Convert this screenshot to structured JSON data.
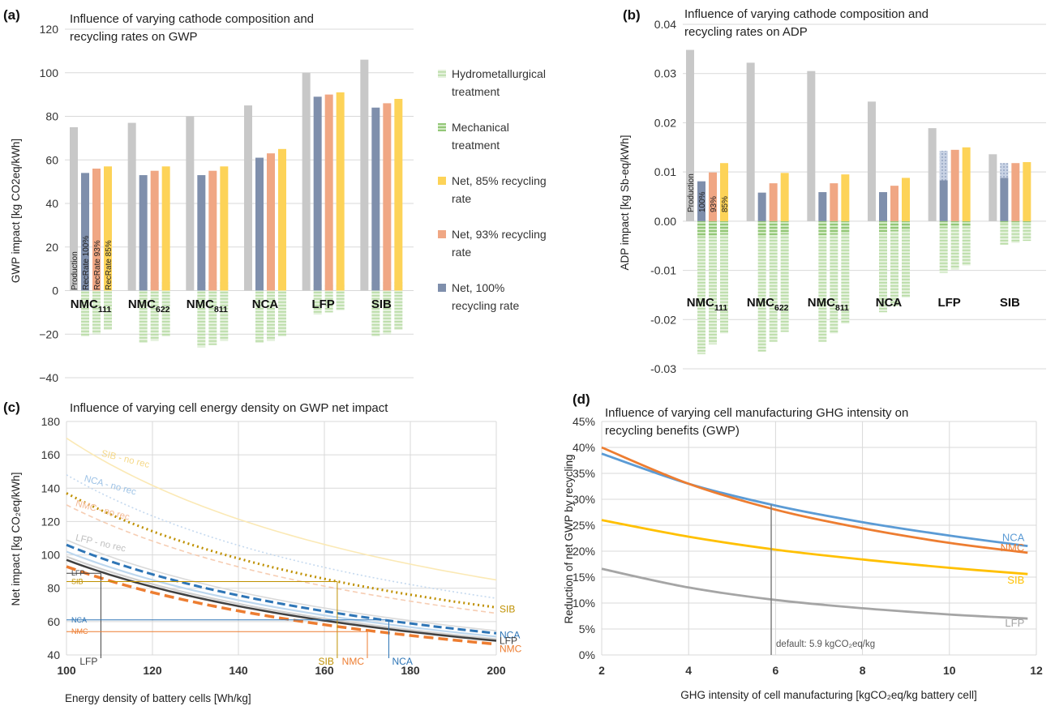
{
  "colors": {
    "production": "#c8c8c8",
    "net100": "#7f8fac",
    "net93": "#f0a784",
    "net85": "#fdd358",
    "hydro": "#c9e6bb",
    "mech": "#a6d48e",
    "nmc_line": "#ed7d31",
    "nca_line": "#5b9bd5",
    "sib_line": "#ffc000",
    "lfp_line": "#a5a5a5",
    "lfp_dark": "#404040",
    "sib_dot": "#bf9000",
    "grid": "#d9d9d9"
  },
  "panels": {
    "a_label": "(a)",
    "b_label": "(b)",
    "c_label": "(c)",
    "d_label": "(d)"
  },
  "legend": {
    "items": [
      {
        "label1": "Hydrometallurgical",
        "label2": "treatment",
        "kind": "hydro"
      },
      {
        "label1": "Mechanical",
        "label2": "treatment",
        "kind": "mech"
      },
      {
        "label1": "Net, 85% recycling",
        "label2": "rate",
        "kind": "net85"
      },
      {
        "label1": "Net, 93% recycling",
        "label2": "rate",
        "kind": "net93"
      },
      {
        "label1": "Net, 100%",
        "label2": "recycling rate",
        "kind": "net100"
      }
    ]
  },
  "chart_data": [
    {
      "type": "bar",
      "title_line1": "Influence of varying cathode composition and",
      "title_line2": "recycling rates on GWP",
      "ylabel": "GWP impact [kg CO2eq/kWh]",
      "ylim": [
        -40,
        120
      ],
      "yticks": [
        "120",
        "100",
        "80",
        "60",
        "40",
        "20",
        "0",
        "−20",
        "−40"
      ],
      "categories": [
        {
          "base": "NMC",
          "sub": "111"
        },
        {
          "base": "NMC",
          "sub": "622"
        },
        {
          "base": "NMC",
          "sub": "811"
        },
        {
          "base": "NCA",
          "sub": ""
        },
        {
          "base": "LFP",
          "sub": ""
        },
        {
          "base": "SIB",
          "sub": ""
        }
      ],
      "bar_annotations": [
        "Production",
        "RecRate 100%",
        "RecRate  93%",
        "RecRate  85%"
      ],
      "series": [
        {
          "name": "Production",
          "values": [
            75,
            77,
            80,
            85,
            100,
            106
          ]
        },
        {
          "name": "Net, 100% recycling rate",
          "values": [
            54,
            53,
            53,
            61,
            89,
            84
          ]
        },
        {
          "name": "Net, 93% recycling rate",
          "values": [
            56,
            55,
            55,
            63,
            90,
            86
          ]
        },
        {
          "name": "Net, 85% recycling rate",
          "values": [
            57,
            57,
            57,
            65,
            91,
            88
          ]
        }
      ],
      "recycling_credit": {
        "mechanical_100": [
          -4,
          -4,
          -4,
          -4,
          -3,
          -4
        ],
        "hydrometallurgical_100": [
          -17,
          -20,
          -22,
          -20,
          -8,
          -17
        ],
        "total_100": [
          -21,
          -24,
          -26,
          -24,
          -11,
          -21
        ],
        "total_93": [
          -20,
          -23,
          -25,
          -23,
          -10,
          -20
        ],
        "total_85": [
          -18,
          -21,
          -23,
          -21,
          -9,
          -18
        ]
      }
    },
    {
      "type": "bar",
      "title_line1": "Influence of varying cathode composition and",
      "title_line2": "recycling rates on ADP",
      "ylabel": "ADP impact [kg Sb-eq/kWh]",
      "ylim": [
        -0.03,
        0.04
      ],
      "yticks": [
        "0.04",
        "0.03",
        "0.02",
        "0.01",
        "0.00",
        "-0.01",
        "-0.02",
        "-0.03"
      ],
      "categories": [
        {
          "base": "NMC",
          "sub": "111"
        },
        {
          "base": "NMC",
          "sub": "622"
        },
        {
          "base": "NMC",
          "sub": "811"
        },
        {
          "base": "NCA",
          "sub": ""
        },
        {
          "base": "LFP",
          "sub": ""
        },
        {
          "base": "SIB",
          "sub": ""
        }
      ],
      "bar_annotations": [
        "Production",
        "100%",
        "93%",
        "85%"
      ],
      "series": [
        {
          "name": "Production",
          "values": [
            0.0348,
            0.0322,
            0.0305,
            0.0243,
            0.0189,
            0.0136
          ]
        },
        {
          "name": "Net, 100% recycling rate",
          "values": [
            0.0081,
            0.0058,
            0.0059,
            0.0059,
            0.0083,
            0.0088
          ]
        },
        {
          "name": "Net, 93% recycling rate",
          "values": [
            0.0099,
            0.0077,
            0.0077,
            0.0072,
            0.0145,
            0.0118
          ]
        },
        {
          "name": "Net, 85% recycling rate",
          "values": [
            0.0118,
            0.0098,
            0.0095,
            0.0088,
            0.015,
            0.012
          ]
        }
      ],
      "recycling_credit": {
        "total_100": [
          -0.027,
          -0.0265,
          -0.0245,
          -0.0185,
          -0.0105,
          -0.0048
        ],
        "total_93": [
          -0.025,
          -0.0245,
          -0.0228,
          -0.0172,
          -0.0098,
          -0.0044
        ],
        "total_85": [
          -0.0228,
          -0.0225,
          -0.0208,
          -0.0155,
          -0.009,
          -0.004
        ]
      }
    },
    {
      "type": "line",
      "title": "Influence of varying cell energy density on GWP net impact",
      "xlabel": "Energy density of battery cells [Wh/kg]",
      "ylabel": "Net impact [kg CO₂eq/kWh]",
      "xlim": [
        100,
        200
      ],
      "ylim": [
        40,
        180
      ],
      "xticks": [
        "100",
        "120",
        "140",
        "160",
        "180",
        "200"
      ],
      "yticks": [
        "180",
        "160",
        "140",
        "120",
        "100",
        "80",
        "60",
        "40"
      ],
      "series": [
        {
          "name": "SIB - no rec",
          "k": 17000,
          "style": "faint-sib"
        },
        {
          "name": "NCA - no rec",
          "k": 14800,
          "style": "faint-nca"
        },
        {
          "name": "NMC - no rec",
          "k": 13000,
          "style": "faint-nmc"
        },
        {
          "name": "LFP - no rec",
          "k": 10900,
          "style": "faint-lfp"
        },
        {
          "name": "SIB",
          "k": 13700,
          "style": "sib"
        },
        {
          "name": "NCA",
          "k": 10600,
          "style": "nca"
        },
        {
          "name": "LFP",
          "k": 9700,
          "style": "lfp"
        },
        {
          "name": "NMC",
          "k": 9300,
          "style": "nmc"
        }
      ],
      "markers": [
        {
          "name": "LFP",
          "x": 108,
          "y": 89
        },
        {
          "name": "SIB",
          "x": 163,
          "y": 84
        },
        {
          "name": "NMC",
          "x": 170,
          "y": 54
        },
        {
          "name": "NCA",
          "x": 175,
          "y": 61
        }
      ]
    },
    {
      "type": "line",
      "title_line1": "Influence of varying cell manufacturing GHG intensity on",
      "title_line2": "recycling  benefits (GWP)",
      "xlabel": "GHG intensity of cell manufacturing [kgCO₂eq/kg battery cell]",
      "ylabel": "Reduction of net GWP by recycling",
      "xlim": [
        2,
        12
      ],
      "ylim": [
        0,
        45
      ],
      "xticks": [
        "2",
        "4",
        "6",
        "8",
        "10",
        "12"
      ],
      "yticks": [
        "45%",
        "40%",
        "35%",
        "30%",
        "25%",
        "20%",
        "15%",
        "10%",
        "5%",
        "0%"
      ],
      "default_annotation": "default: 5.9 kgCO₂eq/kg",
      "default_x": 5.9,
      "series": [
        {
          "name": "NCA",
          "x": [
            2,
            4,
            6,
            8,
            10,
            11.8
          ],
          "y": [
            38.8,
            33.0,
            28.8,
            25.6,
            23.0,
            21.0
          ]
        },
        {
          "name": "NMC",
          "x": [
            2,
            4,
            6,
            8,
            10,
            11.8
          ],
          "y": [
            40.0,
            33.0,
            28.0,
            24.4,
            21.6,
            19.7
          ]
        },
        {
          "name": "SIB",
          "x": [
            2,
            4,
            6,
            8,
            10,
            11.8
          ],
          "y": [
            26.0,
            22.8,
            20.3,
            18.4,
            16.8,
            15.6
          ]
        },
        {
          "name": "LFP",
          "x": [
            2,
            4,
            6,
            8,
            10,
            11.8
          ],
          "y": [
            16.6,
            13.0,
            10.6,
            9.0,
            7.8,
            7.0
          ]
        }
      ]
    }
  ]
}
